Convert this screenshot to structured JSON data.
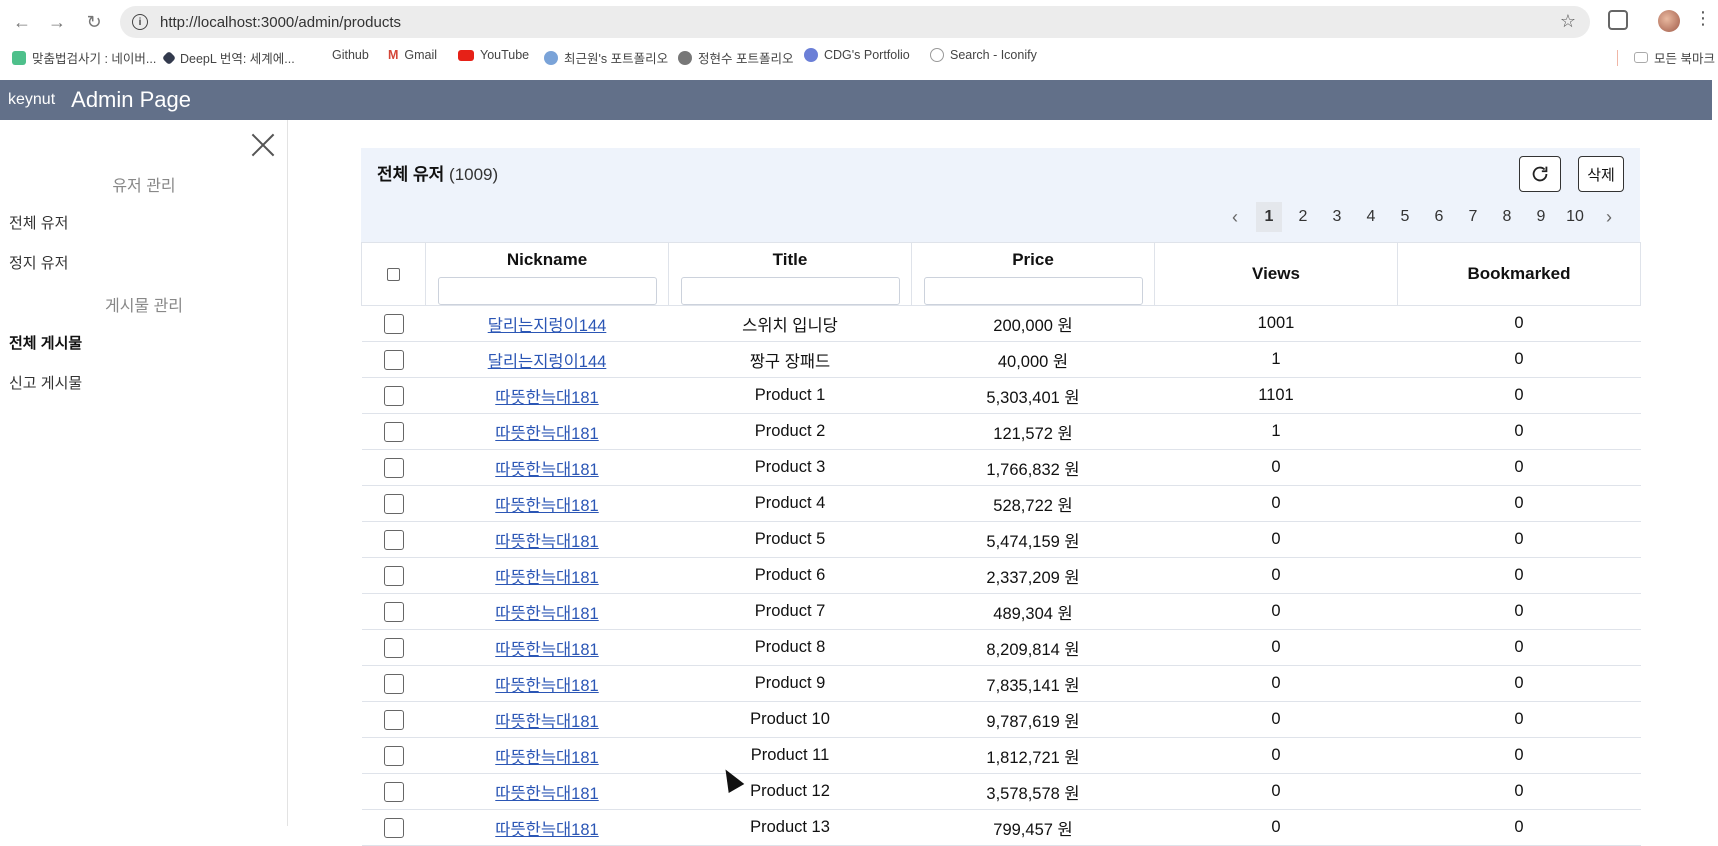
{
  "browser": {
    "url": "http://localhost:3000/admin/products",
    "bookmarks": [
      {
        "label": "맞춤법검사기 : 네이버...",
        "color": "#4ec08b"
      },
      {
        "label": "DeepL 번역: 세계에...",
        "color": "#333a4d"
      },
      {
        "label": "Github",
        "color": "#ffffff"
      },
      {
        "label": "Gmail",
        "color": "#d44638"
      },
      {
        "label": "YouTube",
        "color": "#e62117"
      },
      {
        "label": "최근원's 포트폴리오",
        "color": "#7aa3d8"
      },
      {
        "label": "정현수 포트폴리오",
        "color": "#777777"
      },
      {
        "label": "CDG's Portfolio",
        "color": "#6b7fd7"
      },
      {
        "label": "Search - Iconify",
        "color": "#999999"
      }
    ],
    "all_bookmarks": "모든 북마크"
  },
  "header": {
    "brand": "keynut",
    "title": "Admin Page"
  },
  "sidebar": {
    "group_users": "유저 관리",
    "all_users": "전체 유저",
    "suspended_users": "정지 유저",
    "group_posts": "게시물 관리",
    "all_posts": "전체 게시물",
    "reported_posts": "신고 게시물"
  },
  "panel": {
    "title": "전체 유저",
    "count": "(1009)",
    "delete_label": "삭제",
    "pages": [
      "1",
      "2",
      "3",
      "4",
      "5",
      "6",
      "7",
      "8",
      "9",
      "10"
    ],
    "current_page": "1"
  },
  "table": {
    "columns": [
      "Nickname",
      "Title",
      "Price",
      "Views",
      "Bookmarked"
    ],
    "rows": [
      [
        "달리는지렁이144",
        "스위치 입니당",
        "200,000 원",
        "1001",
        "0"
      ],
      [
        "달리는지렁이144",
        "짱구 장패드",
        "40,000 원",
        "1",
        "0"
      ],
      [
        "따뜻한늑대181",
        "Product 1",
        "5,303,401 원",
        "1101",
        "0"
      ],
      [
        "따뜻한늑대181",
        "Product 2",
        "121,572 원",
        "1",
        "0"
      ],
      [
        "따뜻한늑대181",
        "Product 3",
        "1,766,832 원",
        "0",
        "0"
      ],
      [
        "따뜻한늑대181",
        "Product 4",
        "528,722 원",
        "0",
        "0"
      ],
      [
        "따뜻한늑대181",
        "Product 5",
        "5,474,159 원",
        "0",
        "0"
      ],
      [
        "따뜻한늑대181",
        "Product 6",
        "2,337,209 원",
        "0",
        "0"
      ],
      [
        "따뜻한늑대181",
        "Product 7",
        "489,304 원",
        "0",
        "0"
      ],
      [
        "따뜻한늑대181",
        "Product 8",
        "8,209,814 원",
        "0",
        "0"
      ],
      [
        "따뜻한늑대181",
        "Product 9",
        "7,835,141 원",
        "0",
        "0"
      ],
      [
        "따뜻한늑대181",
        "Product 10",
        "9,787,619 원",
        "0",
        "0"
      ],
      [
        "따뜻한늑대181",
        "Product 11",
        "1,812,721 원",
        "0",
        "0"
      ],
      [
        "따뜻한늑대181",
        "Product 12",
        "3,578,578 원",
        "0",
        "0"
      ],
      [
        "따뜻한늑대181",
        "Product 13",
        "799,457 원",
        "0",
        "0"
      ]
    ]
  }
}
